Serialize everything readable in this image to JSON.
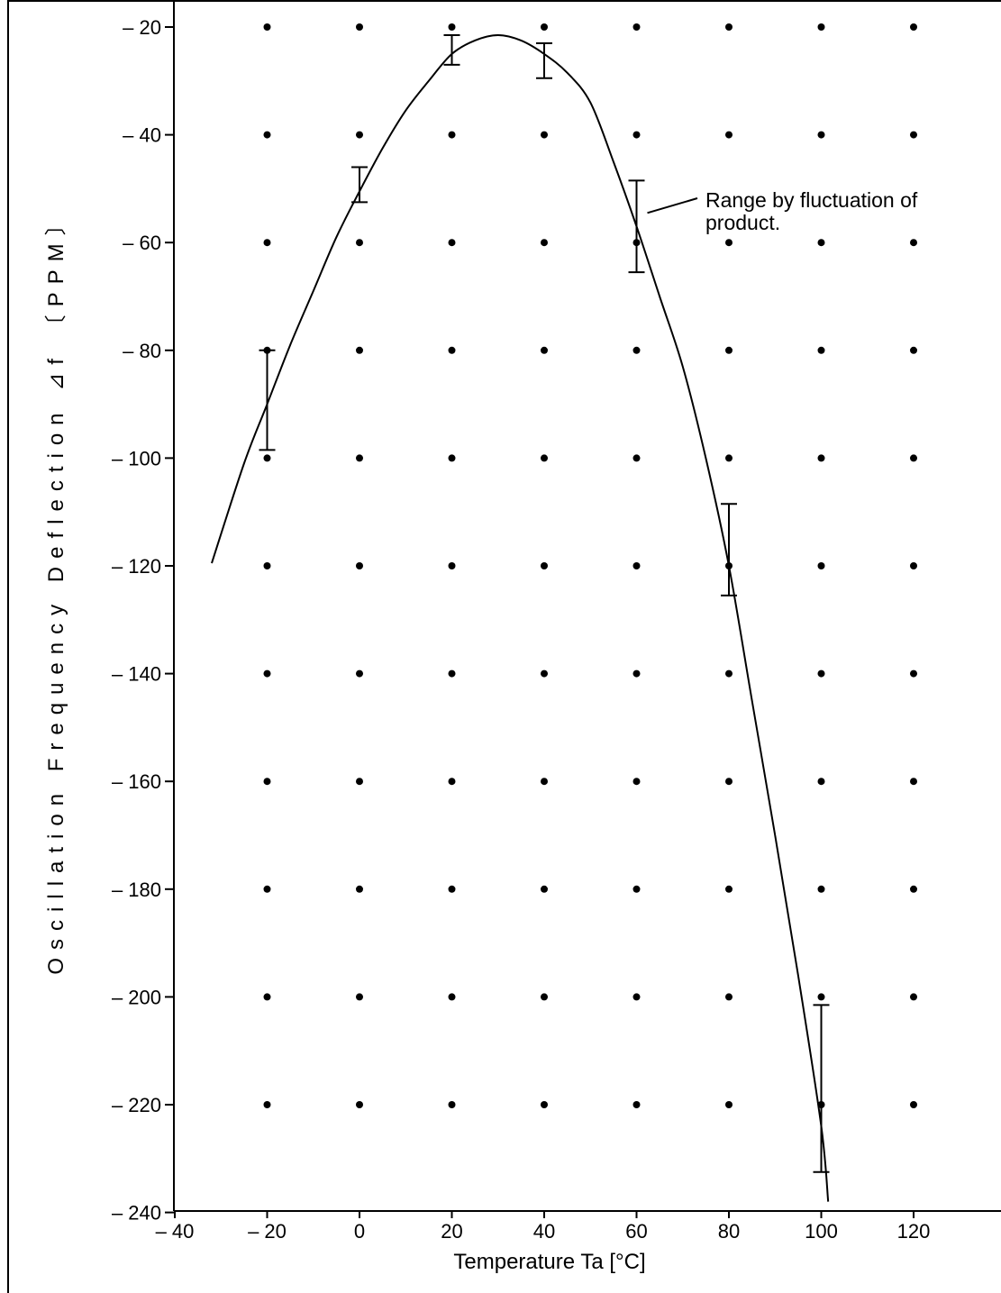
{
  "chart_data": {
    "type": "line",
    "xlabel": "Temperature   Ta [°C]",
    "ylabel": "Oscillation  Frequency  Deflection  ⊿f  〔PPM〕",
    "xlim": [
      -40,
      135
    ],
    "ylim": [
      -242,
      -15
    ],
    "x_ticks": [
      -40,
      -20,
      0,
      20,
      40,
      60,
      80,
      100,
      120
    ],
    "x_tick_labels": [
      "– 40",
      "– 20",
      "0",
      "20",
      "40",
      "60",
      "80",
      "100",
      "120"
    ],
    "y_ticks": [
      -20,
      -40,
      -60,
      -80,
      -100,
      -120,
      -140,
      -160,
      -180,
      -200,
      -220,
      -240
    ],
    "y_tick_labels": [
      "– 20",
      "– 40",
      "– 60",
      "– 80",
      "– 100",
      "– 120",
      "– 140",
      "– 160",
      "– 180",
      "– 200",
      "– 220",
      "– 240"
    ],
    "grid": "dots",
    "grid_x": [
      -20,
      0,
      20,
      40,
      60,
      80,
      100,
      120
    ],
    "grid_y": [
      -20,
      -40,
      -60,
      -80,
      -100,
      -120,
      -140,
      -160,
      -180,
      -200,
      -220
    ],
    "series": [
      {
        "x": [
          -32,
          -25,
          -20,
          -15,
          -10,
          -5,
          0,
          5,
          10,
          15,
          20,
          25,
          30,
          35,
          40,
          45,
          50,
          55,
          60,
          65,
          70,
          75,
          80,
          85,
          90,
          95,
          100,
          101.5
        ],
        "y": [
          -119.5,
          -101,
          -90,
          -79,
          -69,
          -59,
          -50.5,
          -42.5,
          -35.5,
          -30,
          -25,
          -22.5,
          -21.5,
          -22.5,
          -25,
          -28.5,
          -34,
          -45,
          -57,
          -70,
          -83,
          -100,
          -120,
          -145,
          -170,
          -196,
          -224,
          -238
        ]
      }
    ],
    "error_bars": [
      {
        "x": -20,
        "low": -98.5,
        "high": -80
      },
      {
        "x": 0,
        "low": -52.5,
        "high": -46
      },
      {
        "x": 20,
        "low": -27,
        "high": -21.5
      },
      {
        "x": 40,
        "low": -29.5,
        "high": -23
      },
      {
        "x": 60,
        "low": -65.5,
        "high": -48.5
      },
      {
        "x": 80,
        "low": -125.5,
        "high": -108.5
      },
      {
        "x": 100,
        "low": -232.5,
        "high": -201.5
      }
    ],
    "annotation": {
      "text_line1": "Range by fluctuation of",
      "text_line2": "product.",
      "points_to_x": 60,
      "points_to_y": -54
    }
  }
}
